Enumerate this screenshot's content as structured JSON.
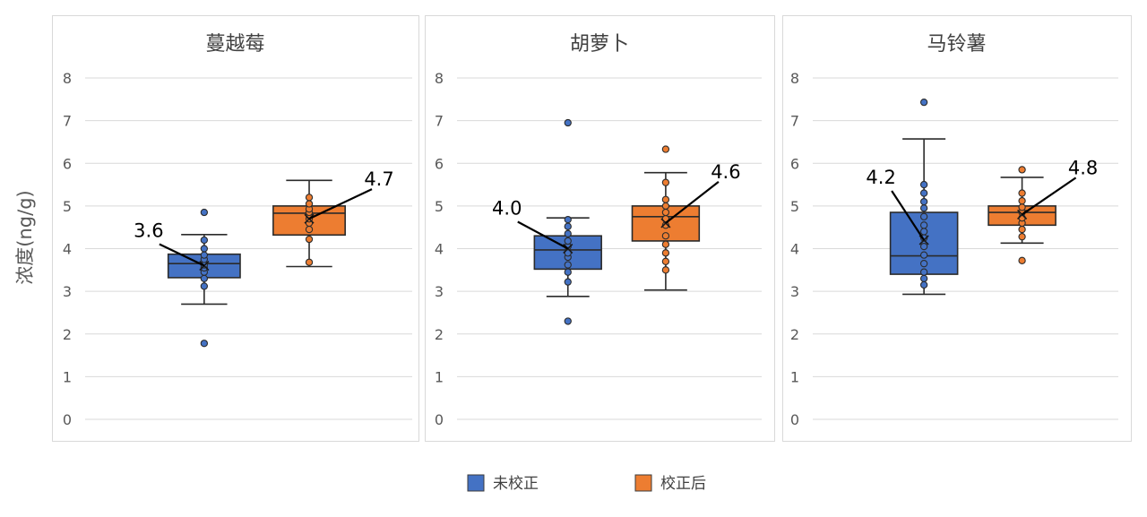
{
  "ylabel": "浓度(ng/g)",
  "legend": [
    {
      "name": "未校正",
      "color": "#4472C4"
    },
    {
      "name": "校正后",
      "color": "#ED7D31"
    }
  ],
  "colors": {
    "before": "#4472C4",
    "after": "#ED7D31",
    "edge": "#2b2b2b",
    "grid": "#d9d9d9",
    "panel_border": "#d9d9d9"
  },
  "chart_data": [
    {
      "type": "box",
      "title": "蔓越莓",
      "ylim": [
        0,
        8
      ],
      "yticks": [
        "0",
        "1",
        "2",
        "3",
        "4",
        "5",
        "6",
        "7",
        "8"
      ],
      "legend_position": "bottom",
      "grid": true,
      "series": [
        {
          "name": "未校正",
          "min": 2.7,
          "q1": 3.32,
          "median": 3.65,
          "q3": 3.87,
          "max": 4.33,
          "mean": 3.6,
          "mean_label": "3.6",
          "points": [
            1.78,
            3.12,
            3.3,
            3.45,
            3.55,
            3.62,
            3.75,
            3.85,
            4.0,
            4.2,
            4.85
          ]
        },
        {
          "name": "校正后",
          "min": 3.58,
          "q1": 4.32,
          "median": 4.83,
          "q3": 5.0,
          "max": 5.6,
          "mean": 4.7,
          "mean_label": "4.7",
          "points": [
            3.68,
            4.22,
            4.45,
            4.6,
            4.7,
            4.78,
            4.85,
            4.93,
            5.05,
            5.2
          ]
        }
      ]
    },
    {
      "type": "box",
      "title": "胡萝卜",
      "ylim": [
        0,
        8
      ],
      "yticks": [
        "0",
        "1",
        "2",
        "3",
        "4",
        "5",
        "6",
        "7",
        "8"
      ],
      "legend_position": "bottom",
      "grid": true,
      "series": [
        {
          "name": "未校正",
          "min": 2.88,
          "q1": 3.52,
          "median": 3.97,
          "q3": 4.3,
          "max": 4.72,
          "mean": 4.0,
          "mean_label": "4.0",
          "points": [
            2.3,
            3.22,
            3.45,
            3.62,
            3.8,
            3.9,
            4.05,
            4.18,
            4.35,
            4.52,
            4.68,
            6.95
          ]
        },
        {
          "name": "校正后",
          "min": 3.03,
          "q1": 4.18,
          "median": 4.75,
          "q3": 5.0,
          "max": 5.78,
          "mean": 4.6,
          "mean_label": "4.6",
          "points": [
            3.5,
            3.7,
            3.9,
            4.1,
            4.3,
            4.55,
            4.7,
            4.85,
            5.0,
            5.15,
            5.55,
            6.33
          ]
        }
      ]
    },
    {
      "type": "box",
      "title": "马铃薯",
      "ylim": [
        0,
        8
      ],
      "yticks": [
        "0",
        "1",
        "2",
        "3",
        "4",
        "5",
        "6",
        "7",
        "8"
      ],
      "legend_position": "bottom",
      "grid": true,
      "series": [
        {
          "name": "未校正",
          "min": 2.93,
          "q1": 3.4,
          "median": 3.83,
          "q3": 4.85,
          "max": 6.57,
          "mean": 4.2,
          "mean_label": "4.2",
          "points": [
            3.15,
            3.3,
            3.45,
            3.65,
            3.85,
            4.05,
            4.25,
            4.4,
            4.55,
            4.75,
            4.95,
            5.1,
            5.3,
            5.5,
            7.43
          ]
        },
        {
          "name": "校正后",
          "min": 4.13,
          "q1": 4.55,
          "median": 4.85,
          "q3": 5.0,
          "max": 5.67,
          "mean": 4.8,
          "mean_label": "4.8",
          "points": [
            3.72,
            4.28,
            4.45,
            4.6,
            4.72,
            4.85,
            4.97,
            5.12,
            5.3,
            5.85
          ]
        }
      ]
    }
  ]
}
